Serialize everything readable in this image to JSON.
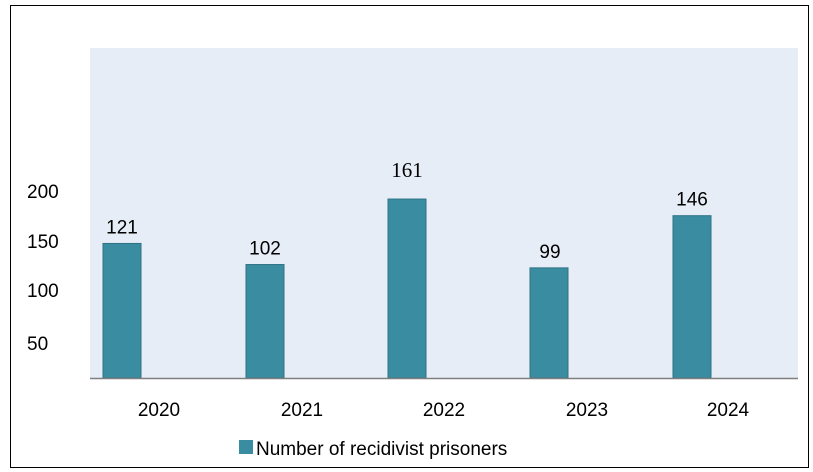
{
  "chart_data": {
    "type": "bar",
    "categories": [
      "2020",
      "2021",
      "2022",
      "2023",
      "2024"
    ],
    "series": [
      {
        "name": "Number of recidivist prisoners",
        "values": [
          121,
          102,
          161,
          99,
          146
        ],
        "data_labels": [
          "121",
          "102",
          "161",
          "99",
          "146"
        ]
      }
    ],
    "y_ticks": [
      50,
      100,
      150,
      200
    ],
    "y_tick_labels": [
      "50",
      "100",
      "150",
      "200"
    ],
    "ylim": [
      25,
      200
    ],
    "grid": false,
    "legend_position": "bottom",
    "colors": {
      "bar": "#3a8ca1",
      "bar_border": "#2e7385",
      "plot_area": "#e6edf6",
      "axis": "#7f7f7f",
      "frame": "#000000"
    }
  }
}
